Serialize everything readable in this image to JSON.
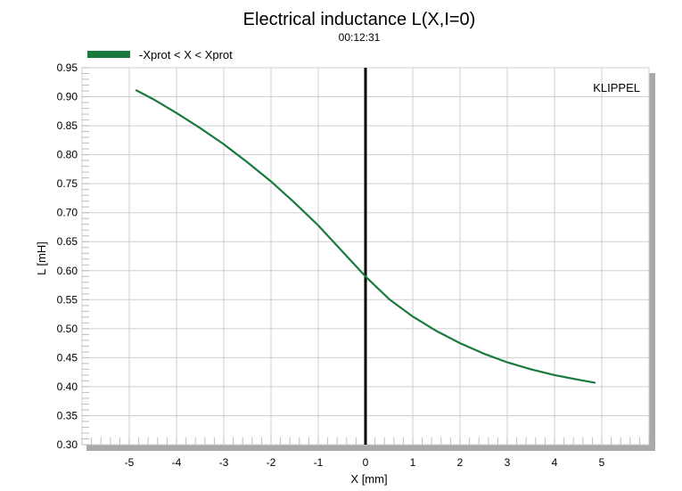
{
  "chart_data": {
    "type": "line",
    "title": "Electrical inductance L(X,I=0)",
    "subtitle": "00:12:31",
    "xlabel": "X [mm]",
    "ylabel": "L [mH]",
    "watermark": "KLIPPEL",
    "xlim": [
      -6,
      6
    ],
    "ylim": [
      0.3,
      0.95
    ],
    "x_ticks": [
      "-5",
      "-4",
      "-3",
      "-2",
      "-1",
      "0",
      "1",
      "2",
      "3",
      "4",
      "5"
    ],
    "y_ticks": [
      "0.30",
      "0.35",
      "0.40",
      "0.45",
      "0.50",
      "0.55",
      "0.60",
      "0.65",
      "0.70",
      "0.75",
      "0.80",
      "0.85",
      "0.90",
      "0.95"
    ],
    "grid": true,
    "legend_position": "top-left",
    "vertical_marker_x": 0,
    "series": [
      {
        "name": "-Xprot < X < Xprot",
        "color": "#1a7a3e",
        "x": [
          -4.85,
          -4.5,
          -4.0,
          -3.5,
          -3.0,
          -2.5,
          -2.0,
          -1.5,
          -1.0,
          -0.5,
          0.0,
          0.5,
          1.0,
          1.5,
          2.0,
          2.5,
          3.0,
          3.5,
          4.0,
          4.5,
          4.85
        ],
        "y": [
          0.911,
          0.896,
          0.872,
          0.846,
          0.818,
          0.787,
          0.754,
          0.717,
          0.678,
          0.634,
          0.59,
          0.551,
          0.521,
          0.496,
          0.475,
          0.457,
          0.442,
          0.43,
          0.42,
          0.412,
          0.407
        ]
      }
    ]
  }
}
